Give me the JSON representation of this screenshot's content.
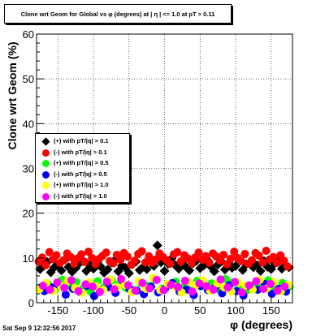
{
  "chart_data": {
    "type": "scatter",
    "title": "Clone wrt Geom for Global vs φ (degrees) at | η | <= 1.0 at pT > 0.11",
    "xlabel": "φ (degrees)",
    "ylabel": "Clone wrt Geom (%)",
    "xlim": [
      -180,
      180
    ],
    "ylim": [
      0,
      60
    ],
    "xticks": [
      "-150",
      "-100",
      "-50",
      "0",
      "50",
      "100",
      "150"
    ],
    "yticks": [
      "0",
      "10",
      "20",
      "30",
      "40",
      "50",
      "60"
    ],
    "grid": true,
    "legend_position": "left-middle",
    "series": [
      {
        "name": "(+) with pT/|q| > 0.1",
        "color": "#000000",
        "marker": "diamond",
        "x": [
          -175,
          -170,
          -165,
          -160,
          -155,
          -150,
          -145,
          -140,
          -135,
          -130,
          -125,
          -120,
          -115,
          -110,
          -105,
          -100,
          -95,
          -90,
          -85,
          -80,
          -75,
          -70,
          -65,
          -60,
          -55,
          -50,
          -45,
          -40,
          -35,
          -30,
          -25,
          -20,
          -15,
          -10,
          -5,
          0,
          5,
          10,
          15,
          20,
          25,
          30,
          35,
          40,
          45,
          50,
          55,
          60,
          65,
          70,
          75,
          80,
          85,
          90,
          95,
          100,
          105,
          110,
          115,
          120,
          125,
          130,
          135,
          140,
          145,
          150,
          155,
          160,
          165,
          170,
          175
        ],
        "y": [
          7.5,
          8.2,
          9.1,
          6.8,
          7.9,
          8.5,
          7.2,
          9.6,
          8.0,
          6.9,
          7.7,
          8.8,
          9.3,
          7.1,
          8.4,
          7.6,
          9.0,
          8.1,
          6.7,
          7.4,
          8.9,
          9.5,
          7.0,
          8.3,
          7.8,
          6.6,
          8.6,
          9.2,
          7.3,
          8.0,
          7.5,
          9.8,
          8.2,
          12.8,
          9.0,
          7.1,
          8.7,
          9.9,
          8.4,
          7.6,
          9.1,
          8.0,
          7.2,
          8.8,
          9.4,
          7.7,
          8.3,
          9.6,
          8.1,
          7.0,
          8.5,
          9.2,
          7.4,
          8.9,
          7.8,
          8.2,
          9.7,
          7.3,
          8.6,
          9.0,
          7.9,
          8.4,
          7.1,
          9.3,
          8.0,
          7.5,
          8.8,
          9.1,
          7.6,
          8.3,
          7.9
        ]
      },
      {
        "name": "(-) with pT/|q| > 0.1",
        "color": "#ff0000",
        "marker": "circle",
        "x": [
          -177,
          -172,
          -167,
          -162,
          -157,
          -152,
          -147,
          -142,
          -137,
          -132,
          -127,
          -122,
          -117,
          -112,
          -107,
          -102,
          -97,
          -92,
          -87,
          -82,
          -77,
          -72,
          -67,
          -62,
          -57,
          -52,
          -47,
          -42,
          -37,
          -32,
          -27,
          -22,
          -17,
          -12,
          -7,
          -2,
          3,
          8,
          13,
          18,
          23,
          28,
          33,
          38,
          43,
          48,
          53,
          58,
          63,
          68,
          73,
          78,
          83,
          88,
          93,
          98,
          103,
          108,
          113,
          118,
          123,
          128,
          133,
          138,
          143,
          148,
          153,
          158,
          163,
          168,
          173
        ],
        "y": [
          9.2,
          10.1,
          8.4,
          11.3,
          9.7,
          10.6,
          8.9,
          9.5,
          11.0,
          10.2,
          8.7,
          9.9,
          10.8,
          9.1,
          11.4,
          10.0,
          8.6,
          9.8,
          10.5,
          11.2,
          9.3,
          8.8,
          10.7,
          9.6,
          11.1,
          10.3,
          8.5,
          9.4,
          10.9,
          11.5,
          9.0,
          10.4,
          8.9,
          9.7,
          11.0,
          10.2,
          9.5,
          8.7,
          10.8,
          11.3,
          9.2,
          10.6,
          9.9,
          8.8,
          10.1,
          11.2,
          9.6,
          10.4,
          8.9,
          11.0,
          10.3,
          9.4,
          10.7,
          8.6,
          9.8,
          11.4,
          10.0,
          9.3,
          10.9,
          8.7,
          9.5,
          11.1,
          10.5,
          9.0,
          11.6,
          9.7,
          10.2,
          8.9,
          10.6,
          9.4,
          8.1
        ]
      },
      {
        "name": "(+) with pT/|q| > 0.5",
        "color": "#00ff00",
        "marker": "circle",
        "x": [
          -174,
          -164,
          -154,
          -144,
          -134,
          -124,
          -114,
          -104,
          -94,
          -84,
          -74,
          -64,
          -54,
          -44,
          -34,
          -24,
          -14,
          -4,
          6,
          16,
          26,
          36,
          46,
          56,
          66,
          76,
          86,
          96,
          106,
          116,
          126,
          136,
          146,
          156,
          166,
          176
        ],
        "y": [
          3.5,
          4.2,
          2.8,
          5.1,
          3.9,
          4.6,
          3.2,
          2.5,
          4.8,
          3.6,
          5.0,
          4.1,
          3.3,
          2.9,
          4.4,
          3.8,
          5.2,
          3.1,
          4.0,
          4.7,
          3.4,
          2.7,
          4.9,
          3.7,
          4.3,
          3.0,
          5.3,
          4.5,
          3.6,
          2.8,
          4.1,
          3.9,
          5.0,
          3.2,
          4.4,
          3.6
        ]
      },
      {
        "name": "(-) with pT/|q| > 0.5",
        "color": "#0000ff",
        "marker": "circle",
        "x": [
          -169,
          -159,
          -149,
          -139,
          -129,
          -119,
          -109,
          -99,
          -89,
          -79,
          -69,
          -59,
          -49,
          -39,
          -29,
          -19,
          -9,
          1,
          11,
          21,
          31,
          41,
          51,
          61,
          71,
          81,
          91,
          101,
          111,
          121,
          131,
          141,
          151,
          161,
          171
        ],
        "y": [
          2.6,
          3.4,
          4.0,
          1.8,
          3.1,
          2.4,
          3.8,
          1.5,
          2.9,
          3.5,
          2.2,
          4.1,
          3.0,
          2.7,
          1.9,
          3.6,
          2.3,
          3.2,
          4.4,
          2.5,
          3.0,
          1.7,
          3.7,
          2.8,
          3.3,
          2.1,
          3.9,
          2.6,
          1.6,
          3.4,
          2.9,
          4.2,
          2.0,
          3.1,
          2.5
        ]
      },
      {
        "name": "(+) with pT/|q| > 1.0",
        "color": "#ffff00",
        "marker": "circle",
        "x": [
          -176,
          -166,
          -156,
          -146,
          -136,
          -126,
          -116,
          -106,
          -96,
          -86,
          -76,
          -66,
          -56,
          -46,
          -36,
          -26,
          -16,
          -6,
          4,
          14,
          24,
          34,
          44,
          54,
          64,
          74,
          84,
          94,
          104,
          114,
          124,
          134,
          144,
          154,
          164,
          174
        ],
        "y": [
          3.0,
          4.4,
          2.6,
          3.8,
          4.9,
          3.3,
          2.2,
          4.6,
          3.7,
          2.9,
          5.2,
          3.5,
          4.0,
          2.4,
          4.8,
          3.1,
          5.5,
          2.8,
          4.2,
          3.6,
          2.3,
          4.7,
          3.9,
          5.0,
          2.7,
          4.3,
          3.4,
          2.5,
          4.5,
          3.8,
          2.9,
          5.1,
          3.2,
          4.6,
          2.6,
          4.0
        ]
      },
      {
        "name": "(-) with pT/|q| > 1.0",
        "color": "#ff00ff",
        "marker": "circle",
        "x": [
          -171,
          -161,
          -151,
          -141,
          -131,
          -121,
          -111,
          -101,
          -91,
          -81,
          -71,
          -61,
          -51,
          -41,
          -31,
          -21,
          -11,
          -1,
          9,
          19,
          29,
          39,
          49,
          59,
          69,
          79,
          89,
          99,
          109,
          119,
          129,
          139,
          149,
          159,
          169
        ],
        "y": [
          3.8,
          2.9,
          4.5,
          3.3,
          5.0,
          2.6,
          4.1,
          3.6,
          2.4,
          4.7,
          3.0,
          5.3,
          3.9,
          2.7,
          4.4,
          3.2,
          5.1,
          2.8,
          4.0,
          3.5,
          4.9,
          2.5,
          4.3,
          3.7,
          2.9,
          5.2,
          3.4,
          4.6,
          2.3,
          3.9,
          4.8,
          3.1,
          4.2,
          2.7,
          3.6
        ]
      }
    ]
  },
  "footer": {
    "timestamp": "Sat Sep  9 12:32:56 2017"
  }
}
